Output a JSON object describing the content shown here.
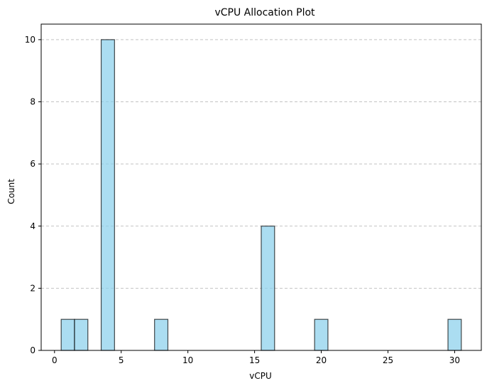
{
  "chart_data": {
    "type": "bar",
    "title": "vCPU Allocation Plot",
    "xlabel": "vCPU",
    "ylabel": "Count",
    "bins": [
      {
        "left": 0.5,
        "right": 1.5,
        "count": 1
      },
      {
        "left": 1.5,
        "right": 2.5,
        "count": 1
      },
      {
        "left": 3.5,
        "right": 4.5,
        "count": 10
      },
      {
        "left": 7.5,
        "right": 8.5,
        "count": 1
      },
      {
        "left": 15.5,
        "right": 16.5,
        "count": 4
      },
      {
        "left": 19.5,
        "right": 20.5,
        "count": 1
      },
      {
        "left": 29.5,
        "right": 30.5,
        "count": 1
      }
    ],
    "xlim": [
      -1,
      32
    ],
    "ylim": [
      0,
      10.5
    ],
    "xticks": [
      0,
      5,
      10,
      15,
      20,
      25,
      30
    ],
    "yticks": [
      0,
      2,
      4,
      6,
      8,
      10
    ],
    "grid": "y-dashed",
    "bar_color": "#87CEEB",
    "bar_edge_color": "#000000"
  }
}
